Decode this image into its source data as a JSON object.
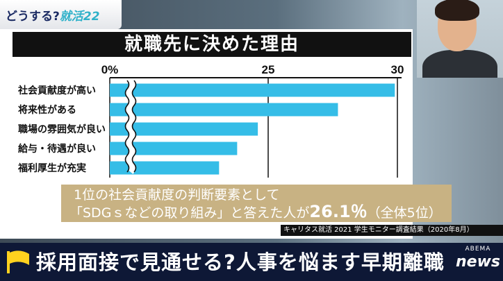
{
  "overlay": {
    "corner_prefix": "どうする?",
    "corner_accent": "就活22",
    "headline": "採用面接で見通せる?人事を悩ます早期離職",
    "logo_top": "ABEMA",
    "logo_bottom": "news"
  },
  "callout": {
    "line1": "1位の社会貢献度の判断要素として",
    "line2_pre": "「SDGｓなどの取り組み」と答えた人が",
    "line2_value": "26.1％",
    "line2_post": "（全体5位）"
  },
  "source": "キャリタス就活 2021 学生モニター調査結果（2020年8月）",
  "colors": {
    "bar": "#35bde7",
    "callout": "#c8b283",
    "title_bar": "#111111"
  },
  "chart_data": {
    "type": "bar",
    "orientation": "horizontal",
    "title": "就職先に決めた理由",
    "categories": [
      "社会貢献度が高い",
      "将来性がある",
      "職場の雰囲気が良い",
      "給与・待遇が良い",
      "福利厚生が充実"
    ],
    "values": [
      29.9,
      27.7,
      24.6,
      23.8,
      23.1
    ],
    "xticks": [
      "0%",
      "25",
      "30"
    ],
    "axis_break": true,
    "grid": true
  }
}
